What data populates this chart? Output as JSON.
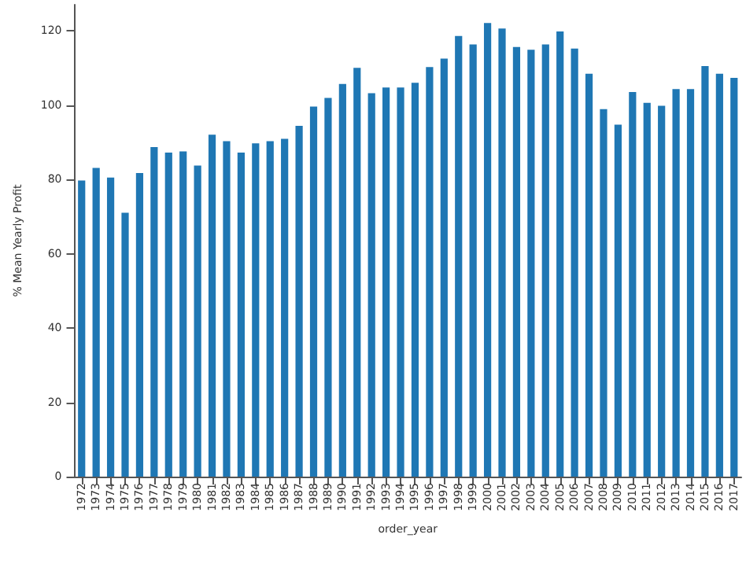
{
  "chart_data": {
    "type": "bar",
    "xlabel": "order_year",
    "ylabel": "% Mean Yearly Profit",
    "categories": [
      "1972",
      "1973",
      "1974",
      "1975",
      "1976",
      "1977",
      "1978",
      "1979",
      "1980",
      "1981",
      "1982",
      "1983",
      "1984",
      "1985",
      "1986",
      "1987",
      "1988",
      "1989",
      "1990",
      "1991",
      "1992",
      "1993",
      "1994",
      "1995",
      "1996",
      "1997",
      "1998",
      "1999",
      "2000",
      "2001",
      "2002",
      "2003",
      "2004",
      "2005",
      "2006",
      "2007",
      "2008",
      "2009",
      "2010",
      "2011",
      "2012",
      "2013",
      "2014",
      "2015",
      "2016",
      "2017"
    ],
    "values": [
      79.7,
      83.1,
      80.5,
      71.0,
      81.7,
      88.7,
      87.2,
      87.5,
      83.7,
      92.0,
      90.3,
      87.2,
      89.7,
      90.3,
      90.9,
      94.4,
      99.6,
      101.9,
      105.7,
      110.0,
      103.2,
      104.7,
      104.7,
      106.0,
      110.2,
      112.5,
      118.6,
      116.3,
      122.1,
      120.6,
      115.6,
      114.9,
      116.3,
      119.8,
      115.2,
      108.4,
      98.9,
      94.7,
      103.5,
      100.6,
      99.8,
      104.3,
      104.3,
      110.5,
      108.4,
      107.3
    ],
    "color": "#1f77b4",
    "ylim": [
      0,
      127
    ],
    "yticks": [
      0,
      20,
      40,
      60,
      80,
      100,
      120
    ],
    "grid": false
  }
}
